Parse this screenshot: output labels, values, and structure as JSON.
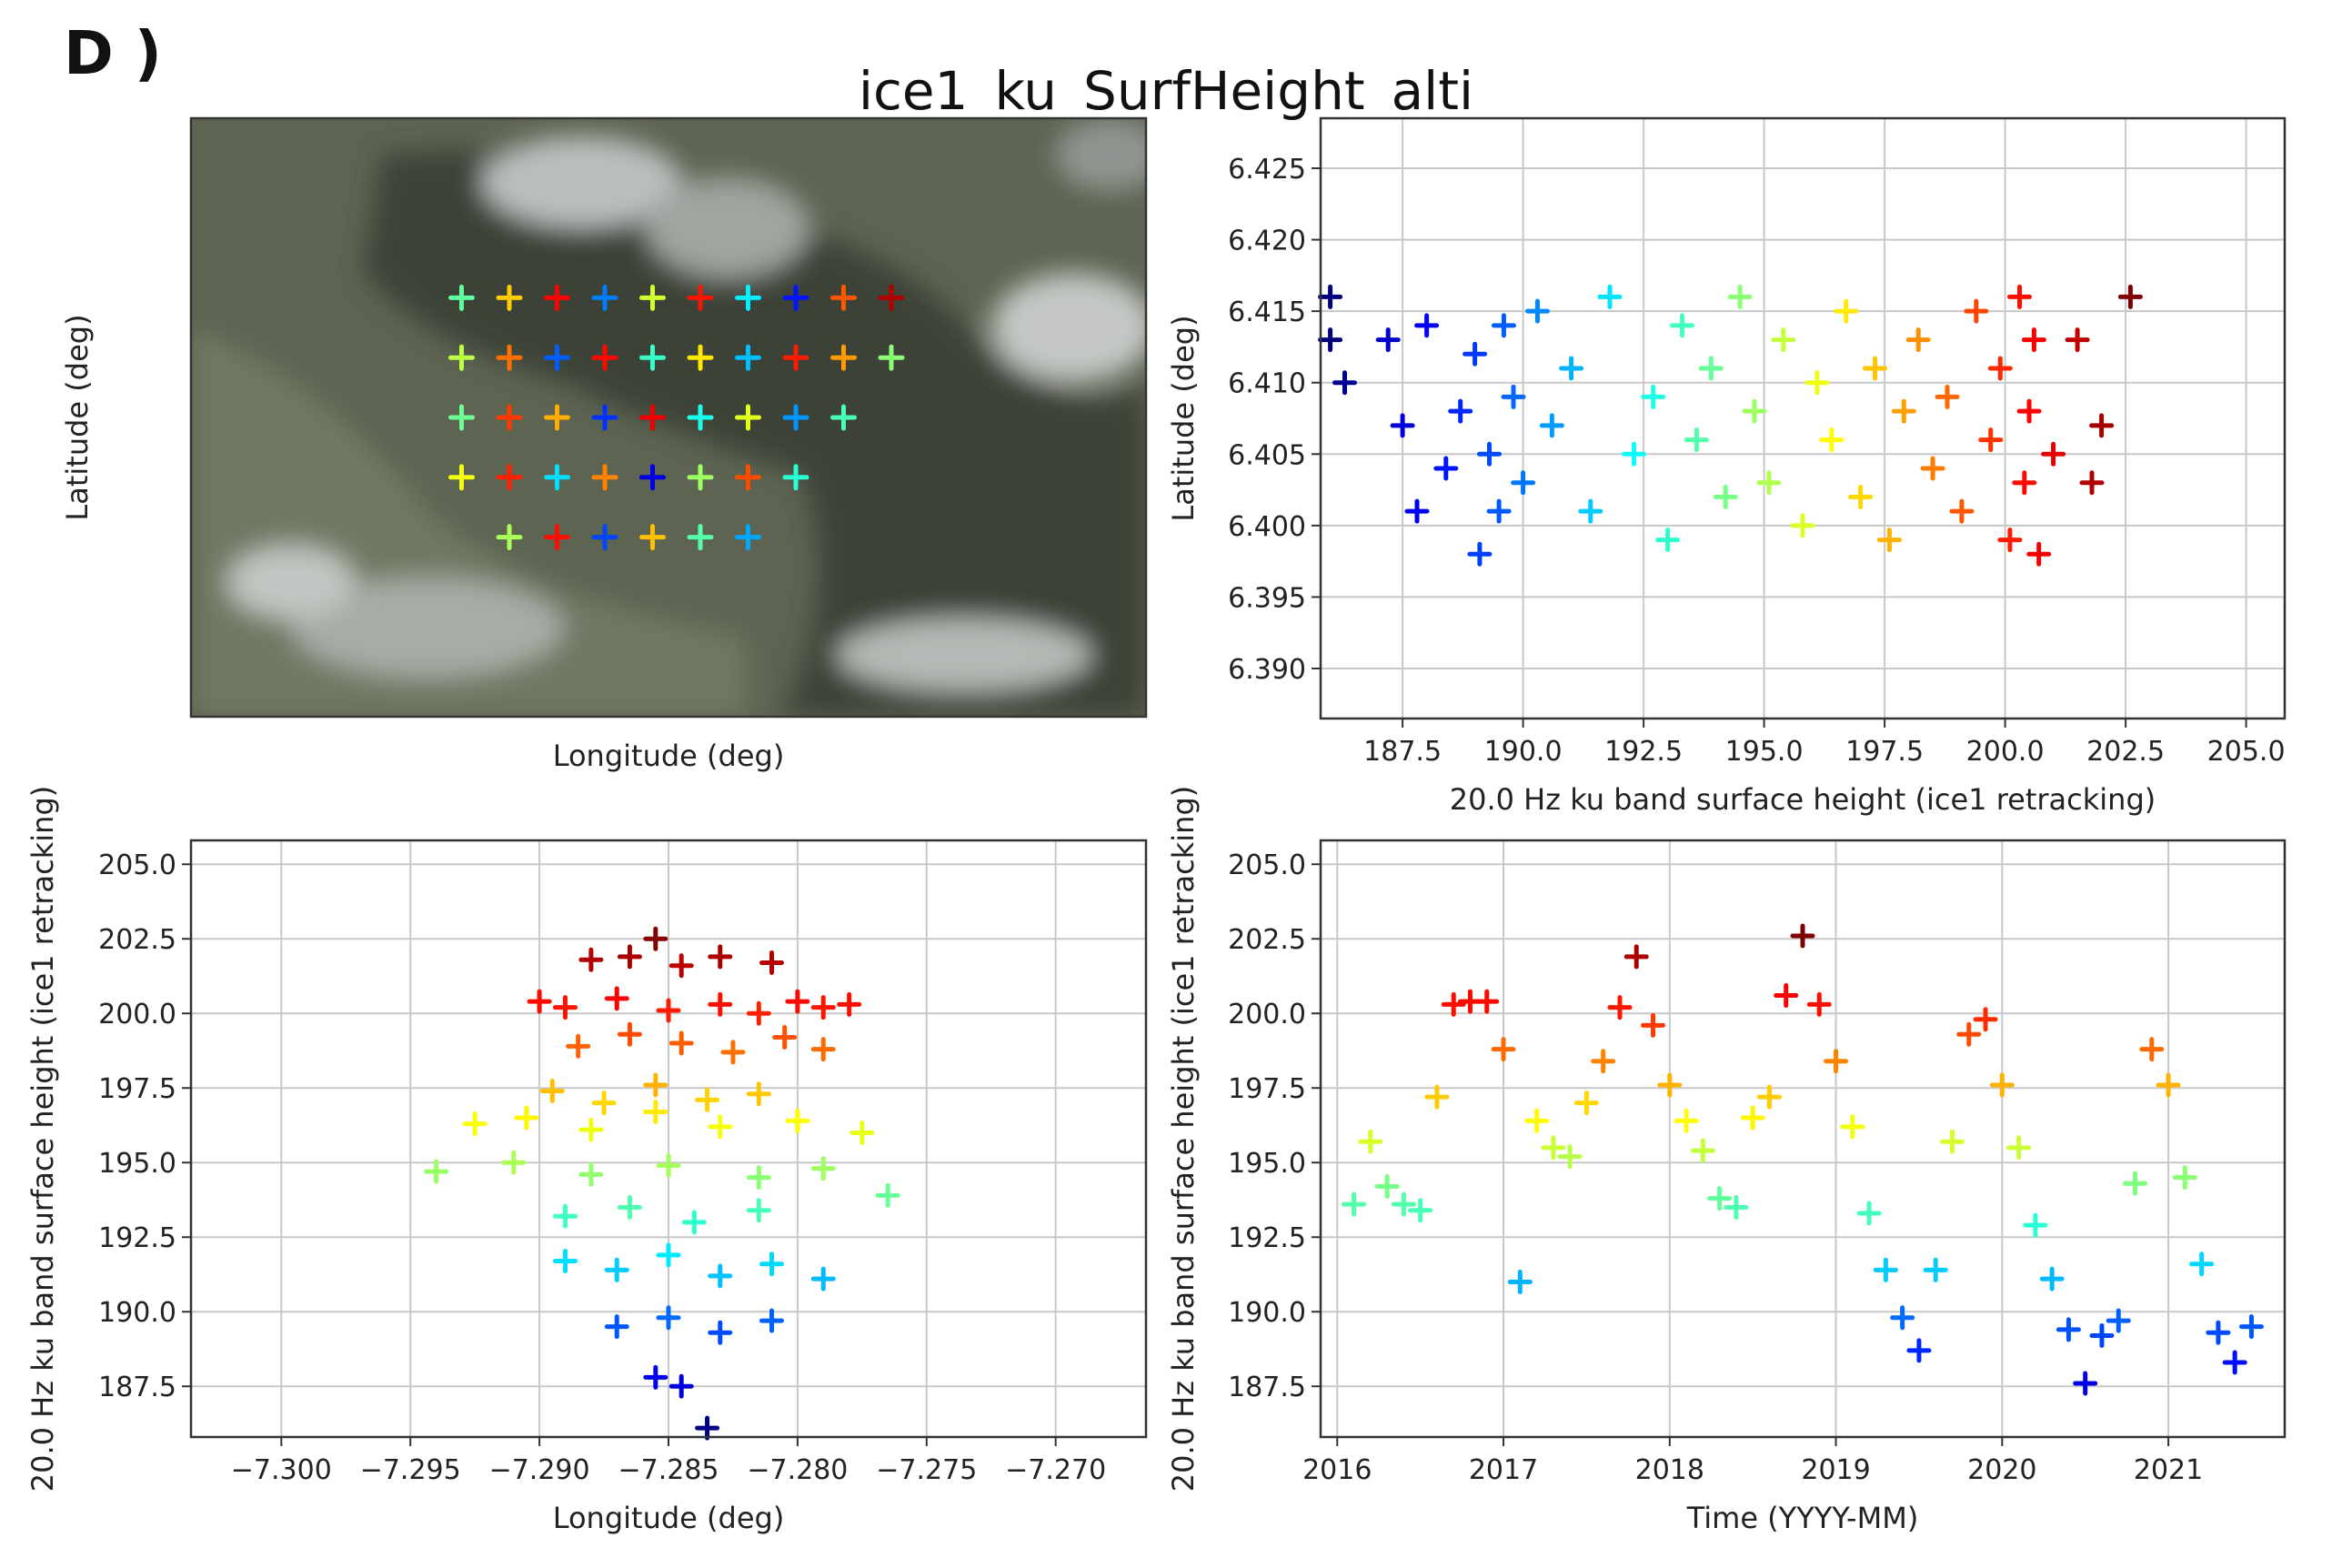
{
  "figure": {
    "panel_label": "D )",
    "title": "ice1_ku_SurfHeight_alti"
  },
  "colormap": [
    "#00007f",
    "#0000ff",
    "#007fff",
    "#00ffff",
    "#7fff7f",
    "#ffff00",
    "#ff7f00",
    "#ff0000",
    "#7f0000"
  ],
  "chart_data": [
    {
      "id": "map",
      "type": "scatter",
      "title": "",
      "xlabel": "Longitude (deg)",
      "ylabel": "Latitude (deg)",
      "background": "satellite imagery",
      "xlim": [
        -7.3,
        -7.27
      ],
      "ylim": [
        6.388,
        6.428
      ],
      "x": [
        -7.2915,
        -7.29,
        -7.2885,
        -7.287,
        -7.2855,
        -7.284,
        -7.2825,
        -7.281,
        -7.2795,
        -7.278,
        -7.2915,
        -7.29,
        -7.2885,
        -7.287,
        -7.2855,
        -7.284,
        -7.2825,
        -7.281,
        -7.2795,
        -7.278,
        -7.2915,
        -7.29,
        -7.2885,
        -7.287,
        -7.2855,
        -7.284,
        -7.2825,
        -7.281,
        -7.2795,
        -7.2915,
        -7.29,
        -7.2885,
        -7.287,
        -7.2855,
        -7.284,
        -7.2825,
        -7.281,
        -7.29,
        -7.2885,
        -7.287,
        -7.2855,
        -7.284,
        -7.2825
      ],
      "y": [
        6.416,
        6.416,
        6.416,
        6.416,
        6.416,
        6.416,
        6.416,
        6.416,
        6.416,
        6.416,
        6.412,
        6.412,
        6.412,
        6.412,
        6.412,
        6.412,
        6.412,
        6.412,
        6.412,
        6.412,
        6.408,
        6.408,
        6.408,
        6.408,
        6.408,
        6.408,
        6.408,
        6.408,
        6.408,
        6.404,
        6.404,
        6.404,
        6.404,
        6.404,
        6.404,
        6.404,
        6.404,
        6.4,
        6.4,
        6.4,
        6.4,
        6.4,
        6.4
      ],
      "height": [
        193.8,
        197.2,
        200.5,
        190.1,
        195.6,
        200.2,
        192.0,
        188.4,
        199.1,
        201.8,
        195.3,
        198.7,
        189.6,
        200.4,
        193.1,
        196.8,
        191.2,
        200.1,
        198.0,
        194.5,
        194.0,
        199.6,
        197.7,
        188.9,
        200.8,
        192.6,
        195.9,
        190.5,
        193.4,
        196.2,
        200.0,
        191.7,
        198.4,
        187.6,
        194.8,
        199.3,
        192.9,
        195.0,
        200.3,
        189.2,
        197.4,
        193.6,
        190.8
      ]
    },
    {
      "id": "lat-vs-height",
      "type": "scatter",
      "xlabel": "20.0 Hz ku band surface height (ice1 retracking)",
      "ylabel": "Latitude (deg)",
      "xlim": [
        185.8,
        205.8
      ],
      "ylim": [
        6.3865,
        6.4285
      ],
      "xticks": [
        187.5,
        190.0,
        192.5,
        195.0,
        197.5,
        200.0,
        202.5,
        205.0
      ],
      "xtick_labels": [
        "187.5",
        "190.0",
        "192.5",
        "195.0",
        "197.5",
        "200.0",
        "202.5",
        "205.0"
      ],
      "yticks": [
        6.39,
        6.395,
        6.4,
        6.405,
        6.41,
        6.415,
        6.42,
        6.425
      ],
      "ytick_labels": [
        "6.390",
        "6.395",
        "6.400",
        "6.405",
        "6.410",
        "6.415",
        "6.420",
        "6.425"
      ],
      "x": [
        186.0,
        186.0,
        186.3,
        187.2,
        187.5,
        187.8,
        188.0,
        188.4,
        188.7,
        189.0,
        189.1,
        189.3,
        189.5,
        189.6,
        189.8,
        190.0,
        190.3,
        190.6,
        191.0,
        191.4,
        191.8,
        192.3,
        192.7,
        193.0,
        193.3,
        193.6,
        193.9,
        194.2,
        194.5,
        194.8,
        195.1,
        195.4,
        195.8,
        196.1,
        196.4,
        196.7,
        197.0,
        197.3,
        197.6,
        197.9,
        198.2,
        198.5,
        198.8,
        199.1,
        199.4,
        199.7,
        199.9,
        200.1,
        200.3,
        200.4,
        200.5,
        200.6,
        200.7,
        201.0,
        201.5,
        201.8,
        202.0,
        202.6
      ],
      "y": [
        6.416,
        6.413,
        6.41,
        6.413,
        6.407,
        6.401,
        6.414,
        6.404,
        6.408,
        6.412,
        6.398,
        6.405,
        6.401,
        6.414,
        6.409,
        6.403,
        6.415,
        6.407,
        6.411,
        6.401,
        6.416,
        6.405,
        6.409,
        6.399,
        6.414,
        6.406,
        6.411,
        6.402,
        6.416,
        6.408,
        6.403,
        6.413,
        6.4,
        6.41,
        6.406,
        6.415,
        6.402,
        6.411,
        6.399,
        6.408,
        6.413,
        6.404,
        6.409,
        6.401,
        6.415,
        6.406,
        6.411,
        6.399,
        6.416,
        6.403,
        6.408,
        6.413,
        6.398,
        6.405,
        6.413,
        6.403,
        6.407,
        6.416
      ]
    },
    {
      "id": "height-vs-lon",
      "type": "scatter",
      "xlabel": "Longitude (deg)",
      "ylabel": "20.0 Hz ku band surface height (ice1 retracking)",
      "xlim": [
        -7.3035,
        -7.2665
      ],
      "ylim": [
        185.8,
        205.8
      ],
      "xticks": [
        -7.3,
        -7.295,
        -7.29,
        -7.285,
        -7.28,
        -7.275,
        -7.27
      ],
      "xtick_labels": [
        "−7.300",
        "−7.295",
        "−7.290",
        "−7.285",
        "−7.280",
        "−7.275",
        "−7.270"
      ],
      "yticks": [
        187.5,
        190.0,
        192.5,
        195.0,
        197.5,
        200.0,
        202.5,
        205.0
      ],
      "ytick_labels": [
        "187.5",
        "190.0",
        "192.5",
        "195.0",
        "197.5",
        "200.0",
        "202.5",
        "205.0"
      ],
      "x": [
        -7.2855,
        -7.2865,
        -7.288,
        -7.2845,
        -7.283,
        -7.281,
        -7.29,
        -7.289,
        -7.287,
        -7.285,
        -7.283,
        -7.2815,
        -7.28,
        -7.279,
        -7.278,
        -7.2885,
        -7.2865,
        -7.2845,
        -7.2825,
        -7.2805,
        -7.279,
        -7.2895,
        -7.2875,
        -7.2855,
        -7.2835,
        -7.2815,
        -7.2925,
        -7.2905,
        -7.288,
        -7.2855,
        -7.283,
        -7.28,
        -7.2775,
        -7.294,
        -7.291,
        -7.288,
        -7.285,
        -7.2815,
        -7.279,
        -7.2765,
        -7.289,
        -7.2865,
        -7.284,
        -7.2815,
        -7.289,
        -7.287,
        -7.285,
        -7.283,
        -7.281,
        -7.279,
        -7.287,
        -7.285,
        -7.283,
        -7.281,
        -7.2855,
        -7.2845,
        -7.2835
      ],
      "y": [
        202.5,
        201.9,
        201.8,
        201.6,
        201.9,
        201.7,
        200.4,
        200.2,
        200.5,
        200.1,
        200.3,
        200.0,
        200.4,
        200.2,
        200.3,
        198.9,
        199.3,
        199.0,
        198.7,
        199.2,
        198.8,
        197.4,
        197.0,
        197.6,
        197.1,
        197.3,
        196.3,
        196.5,
        196.1,
        196.7,
        196.2,
        196.4,
        196.0,
        194.7,
        195.0,
        194.6,
        194.9,
        194.5,
        194.8,
        193.9,
        193.2,
        193.5,
        193.0,
        193.4,
        191.7,
        191.4,
        191.9,
        191.2,
        191.6,
        191.1,
        189.5,
        189.8,
        189.3,
        189.7,
        187.8,
        187.5,
        186.1
      ]
    },
    {
      "id": "height-vs-time",
      "type": "scatter",
      "xlabel": "Time (YYYY-MM)",
      "ylabel": "20.0 Hz ku band surface height (ice1 retracking)",
      "xlim": [
        2015.9,
        2021.7
      ],
      "ylim": [
        185.8,
        205.8
      ],
      "xticks": [
        2016,
        2017,
        2018,
        2019,
        2020,
        2021
      ],
      "xtick_labels": [
        "2016",
        "2017",
        "2018",
        "2019",
        "2020",
        "2021"
      ],
      "yticks": [
        187.5,
        190.0,
        192.5,
        195.0,
        197.5,
        200.0,
        202.5,
        205.0
      ],
      "ytick_labels": [
        "187.5",
        "190.0",
        "192.5",
        "195.0",
        "197.5",
        "200.0",
        "202.5",
        "205.0"
      ],
      "x": [
        2016.1,
        2016.2,
        2016.3,
        2016.4,
        2016.5,
        2016.6,
        2016.7,
        2016.8,
        2016.9,
        2017.0,
        2017.1,
        2017.2,
        2017.3,
        2017.4,
        2017.5,
        2017.6,
        2017.7,
        2017.8,
        2017.9,
        2018.0,
        2018.1,
        2018.2,
        2018.3,
        2018.4,
        2018.5,
        2018.6,
        2018.7,
        2018.8,
        2018.9,
        2019.0,
        2019.1,
        2019.2,
        2019.3,
        2019.4,
        2019.5,
        2019.6,
        2019.7,
        2019.8,
        2019.9,
        2020.0,
        2020.1,
        2020.2,
        2020.3,
        2020.4,
        2020.5,
        2020.6,
        2020.7,
        2020.8,
        2020.9,
        2021.0,
        2021.1,
        2021.2,
        2021.3,
        2021.4,
        2021.5
      ],
      "y": [
        193.6,
        195.7,
        194.2,
        193.6,
        193.4,
        197.2,
        200.3,
        200.4,
        200.4,
        198.8,
        191.0,
        196.4,
        195.5,
        195.2,
        197.0,
        198.4,
        200.2,
        201.9,
        199.6,
        197.6,
        196.4,
        195.4,
        193.8,
        193.5,
        196.5,
        197.2,
        200.6,
        202.6,
        200.3,
        198.4,
        196.2,
        193.3,
        191.4,
        189.8,
        188.7,
        191.4,
        195.7,
        199.3,
        199.8,
        197.6,
        195.5,
        192.9,
        191.1,
        189.4,
        187.6,
        189.2,
        189.7,
        194.3,
        198.8,
        197.6,
        194.5,
        191.6,
        189.3,
        188.3,
        189.5
      ]
    }
  ]
}
